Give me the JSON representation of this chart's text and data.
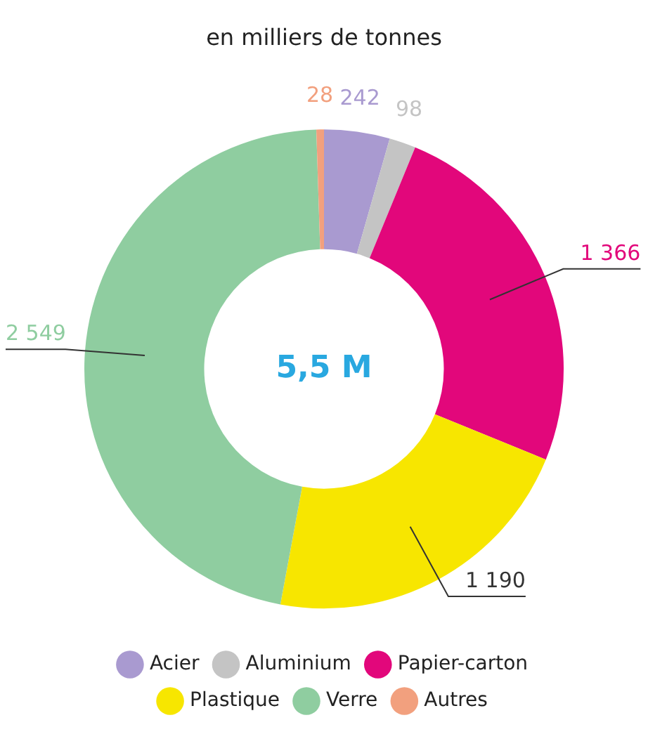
{
  "chart_data": {
    "type": "donut",
    "title": "en milliers de tonnes",
    "categories": [
      "Acier",
      "Aluminium",
      "Papier-carton",
      "Plastique",
      "Verre",
      "Autres"
    ],
    "values": [
      242,
      98,
      1366,
      1190,
      2549,
      28
    ],
    "colors": [
      "#a99ad0",
      "#c4c4c4",
      "#e2077b",
      "#f7e600",
      "#8fcda0",
      "#f2a07e"
    ],
    "value_labels": [
      "242",
      "98",
      "1 366",
      "1 190",
      "2 549",
      "28"
    ],
    "annotations": [
      "5,5 M"
    ],
    "legend": "bottom"
  }
}
